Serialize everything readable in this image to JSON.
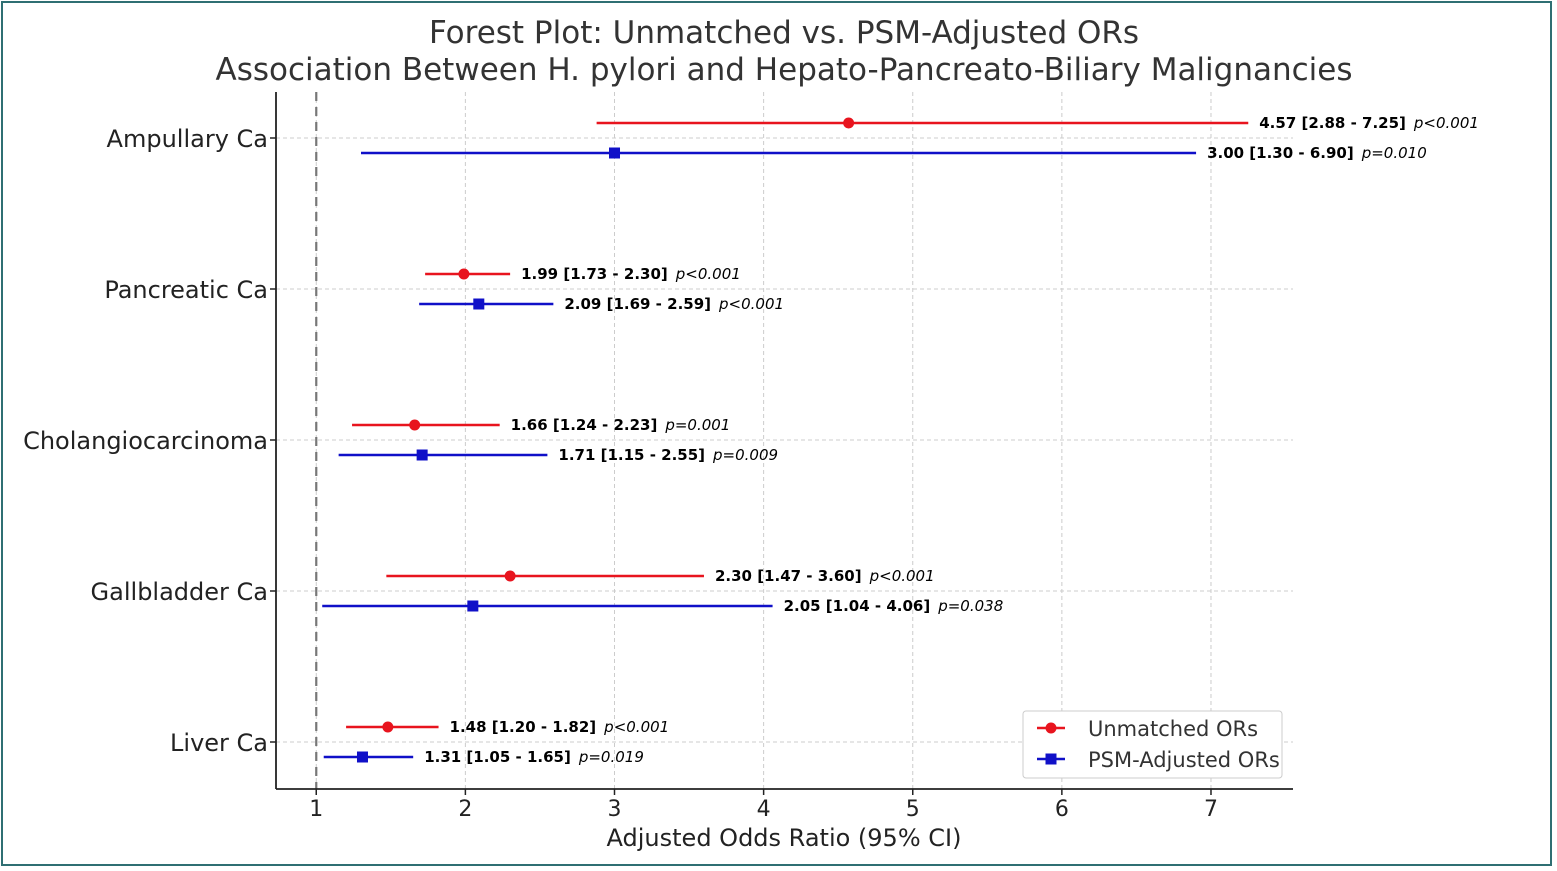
{
  "chart_data": {
    "type": "scatter",
    "subtype": "forest",
    "title": "Forest Plot: Unmatched vs. PSM-Adjusted ORs",
    "subtitle": "Association Between H. pylori and Hepato-Pancreato-Biliary Malignancies",
    "xlabel": "Adjusted Odds Ratio (95% CI)",
    "ylabel": "",
    "xlim": [
      0.73,
      7.55
    ],
    "xticks": [
      1,
      2,
      3,
      4,
      5,
      6,
      7
    ],
    "reference_line": 1,
    "grid": true,
    "legend_position": "lower-right",
    "categories": [
      "Ampullary Ca",
      "Pancreatic Ca",
      "Cholangiocarcinoma",
      "Gallbladder Ca",
      "Liver Ca"
    ],
    "series": [
      {
        "name": "Unmatched ORs",
        "color": "#e8141e",
        "marker": "circle",
        "points": [
          {
            "or": 4.57,
            "lo": 2.88,
            "hi": 7.25,
            "ci": "4.57 [2.88 - 7.25]",
            "p": "p<0.001"
          },
          {
            "or": 1.99,
            "lo": 1.73,
            "hi": 2.3,
            "ci": "1.99 [1.73 - 2.30]",
            "p": "p<0.001"
          },
          {
            "or": 1.66,
            "lo": 1.24,
            "hi": 2.23,
            "ci": "1.66 [1.24 - 2.23]",
            "p": "p=0.001"
          },
          {
            "or": 2.3,
            "lo": 1.47,
            "hi": 3.6,
            "ci": "2.30 [1.47 - 3.60]",
            "p": "p<0.001"
          },
          {
            "or": 1.48,
            "lo": 1.2,
            "hi": 1.82,
            "ci": "1.48 [1.20 - 1.82]",
            "p": "p<0.001"
          }
        ]
      },
      {
        "name": "PSM-Adjusted ORs",
        "color": "#1010c8",
        "marker": "square",
        "points": [
          {
            "or": 3.0,
            "lo": 1.3,
            "hi": 6.9,
            "ci": "3.00 [1.30 - 6.90]",
            "p": "p=0.010"
          },
          {
            "or": 2.09,
            "lo": 1.69,
            "hi": 2.59,
            "ci": "2.09 [1.69 - 2.59]",
            "p": "p<0.001"
          },
          {
            "or": 1.71,
            "lo": 1.15,
            "hi": 2.55,
            "ci": "1.71 [1.15 - 2.55]",
            "p": "p=0.009"
          },
          {
            "or": 2.05,
            "lo": 1.04,
            "hi": 4.06,
            "ci": "2.05 [1.04 - 4.06]",
            "p": "p=0.038"
          },
          {
            "or": 1.31,
            "lo": 1.05,
            "hi": 1.65,
            "ci": "1.31 [1.05 - 1.65]",
            "p": "p=0.019"
          }
        ]
      }
    ]
  }
}
